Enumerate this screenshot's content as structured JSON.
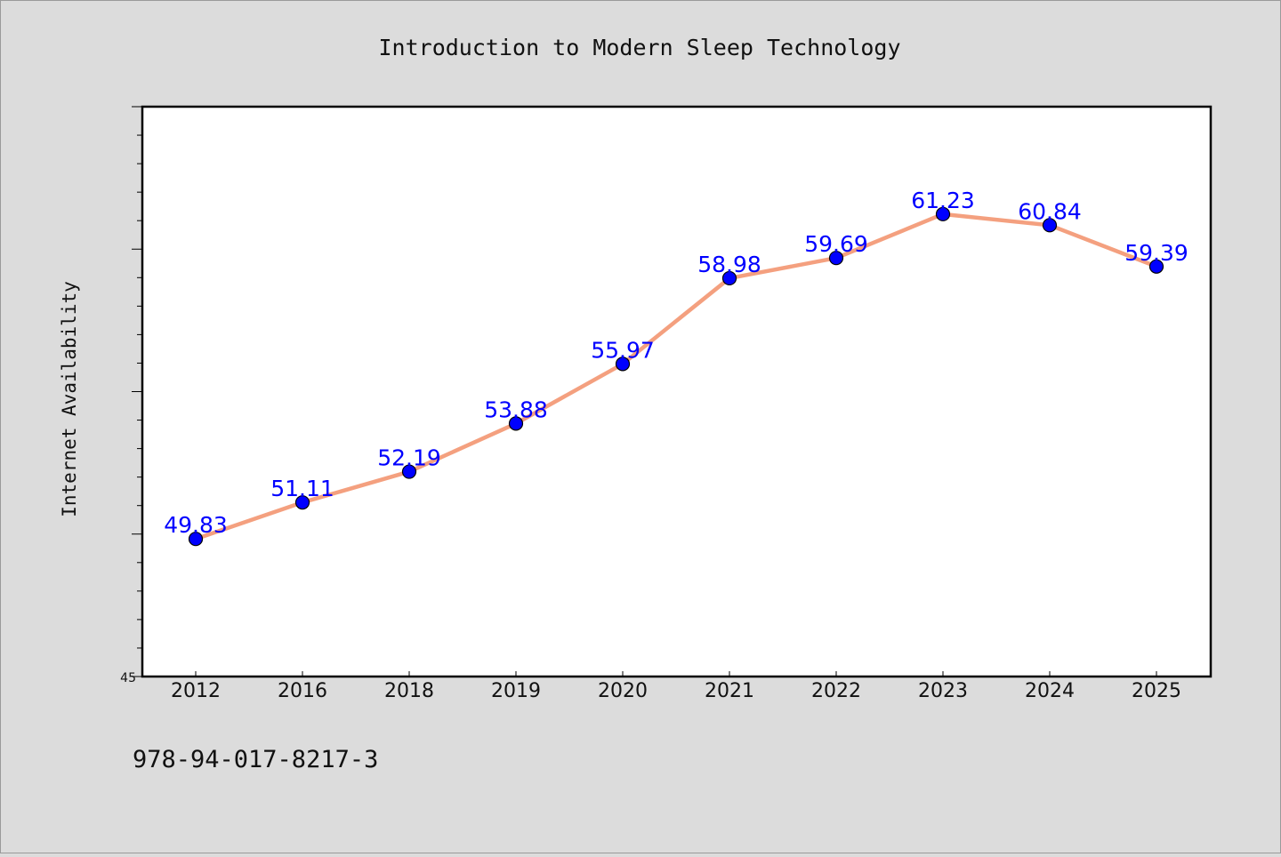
{
  "chart_data": {
    "type": "line",
    "title": "Introduction to Modern Sleep Technology",
    "xlabel": "",
    "ylabel": "Internet Availability",
    "categories": [
      "2012",
      "2016",
      "2018",
      "2019",
      "2020",
      "2021",
      "2022",
      "2023",
      "2024",
      "2025"
    ],
    "values": [
      49.83,
      51.11,
      52.19,
      53.88,
      55.97,
      58.98,
      59.69,
      61.23,
      60.84,
      59.39
    ],
    "data_labels": [
      "49.83",
      "51.11",
      "52.19",
      "53.88",
      "55.97",
      "58.98",
      "59.69",
      "61.23",
      "60.84",
      "59.39"
    ],
    "ylim": [
      45,
      65
    ],
    "y_tick_labels": [
      "45"
    ],
    "grid": false,
    "legend": "none",
    "line_color": "#f4a07f",
    "marker_color": "#0000ff",
    "label_color": "#0000ff",
    "plot_background": "#ffffff",
    "page_background": "#dcdcdc"
  },
  "footer": {
    "isbn": "978-94-017-8217-3"
  }
}
